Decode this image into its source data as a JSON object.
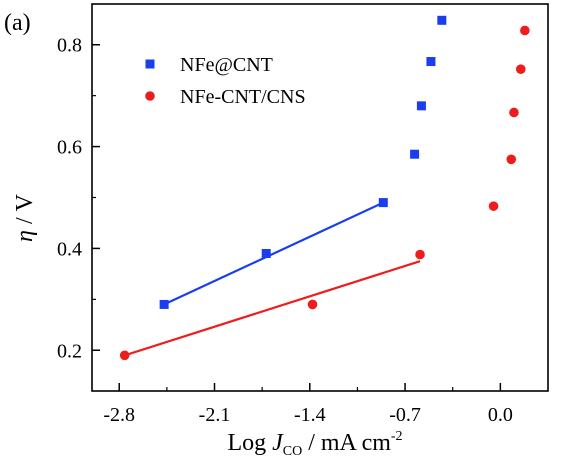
{
  "chart_data": {
    "type": "scatter",
    "panel_label": "(a)",
    "xlabel": {
      "prefix": "Log ",
      "symbol": "J",
      "subscript": "CO",
      "unit": " / mA cm",
      "superscript": "-2"
    },
    "ylabel": {
      "symbol": "η",
      "unit": " / V"
    },
    "xlim": [
      -3.0,
      0.35
    ],
    "ylim": [
      0.12,
      0.88
    ],
    "x_ticks": [
      -2.8,
      -2.1,
      -1.4,
      -0.7,
      0.0
    ],
    "x_tick_labels": [
      "-2.8",
      "-2.1",
      "-1.4",
      "-0.7",
      "0.0"
    ],
    "y_ticks": [
      0.2,
      0.4,
      0.6,
      0.8
    ],
    "y_tick_labels": [
      "0.2",
      "0.4",
      "0.6",
      "0.8"
    ],
    "grid": false,
    "legend_position": "top-left",
    "series": [
      {
        "name": "NFe@CNT",
        "marker": "square",
        "color": "#1a3df0",
        "points": [
          {
            "x": -2.47,
            "y": 0.29
          },
          {
            "x": -1.72,
            "y": 0.39
          },
          {
            "x": -0.86,
            "y": 0.49
          },
          {
            "x": -0.63,
            "y": 0.585
          },
          {
            "x": -0.58,
            "y": 0.68
          },
          {
            "x": -0.51,
            "y": 0.767
          },
          {
            "x": -0.43,
            "y": 0.848
          }
        ],
        "fit": {
          "x": [
            -2.47,
            -0.86
          ],
          "y": [
            0.29,
            0.49
          ]
        }
      },
      {
        "name": "NFe-CNT/CNS",
        "marker": "circle",
        "color": "#ee1c1c",
        "points": [
          {
            "x": -2.76,
            "y": 0.19
          },
          {
            "x": -1.38,
            "y": 0.29
          },
          {
            "x": -0.59,
            "y": 0.388
          },
          {
            "x": -0.05,
            "y": 0.483
          },
          {
            "x": 0.08,
            "y": 0.575
          },
          {
            "x": 0.1,
            "y": 0.667
          },
          {
            "x": 0.15,
            "y": 0.752
          },
          {
            "x": 0.18,
            "y": 0.828
          }
        ],
        "fit": {
          "x": [
            -2.76,
            -0.59
          ],
          "y": [
            0.19,
            0.375
          ]
        }
      }
    ]
  }
}
